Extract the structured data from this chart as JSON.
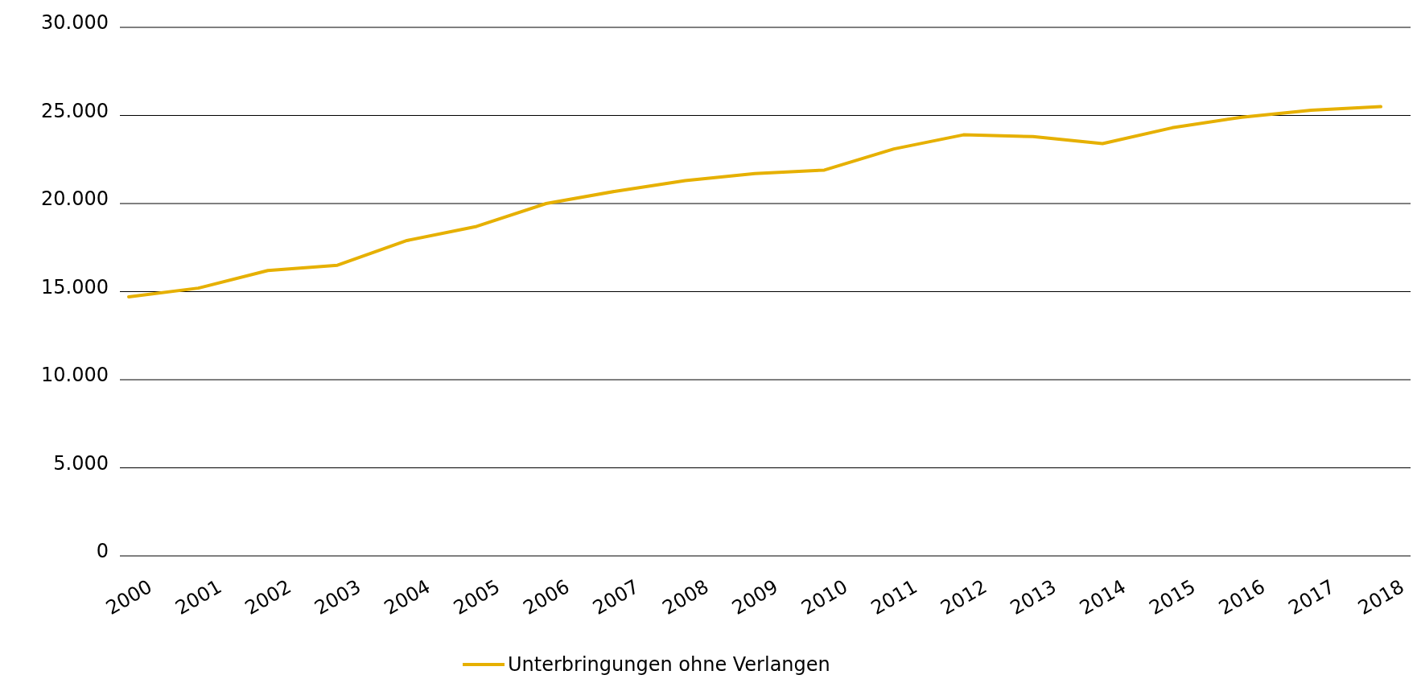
{
  "chart_data": {
    "type": "line",
    "categories": [
      "2000",
      "2001",
      "2002",
      "2003",
      "2004",
      "2005",
      "2006",
      "2007",
      "2008",
      "2009",
      "2010",
      "2011",
      "2012",
      "2013",
      "2014",
      "2015",
      "2016",
      "2017",
      "2018"
    ],
    "series": [
      {
        "name": "Unterbringungen ohne Verlangen",
        "color": "#e6b000",
        "values": [
          14700,
          15200,
          16200,
          16500,
          17900,
          18700,
          20000,
          20700,
          21300,
          21700,
          21900,
          23100,
          23900,
          23800,
          23400,
          24300,
          24900,
          25300,
          25500
        ]
      }
    ],
    "ylim": [
      0,
      30000
    ],
    "yticks": [
      {
        "value": 0,
        "label": "0"
      },
      {
        "value": 5000,
        "label": "5.000"
      },
      {
        "value": 10000,
        "label": "10.000"
      },
      {
        "value": 15000,
        "label": "15.000"
      },
      {
        "value": 20000,
        "label": "20.000"
      },
      {
        "value": 25000,
        "label": "25.000"
      },
      {
        "value": 30000,
        "label": "30.000"
      }
    ],
    "grid": "y",
    "legend": "bottom",
    "marker": "none",
    "line_style": "solid"
  }
}
